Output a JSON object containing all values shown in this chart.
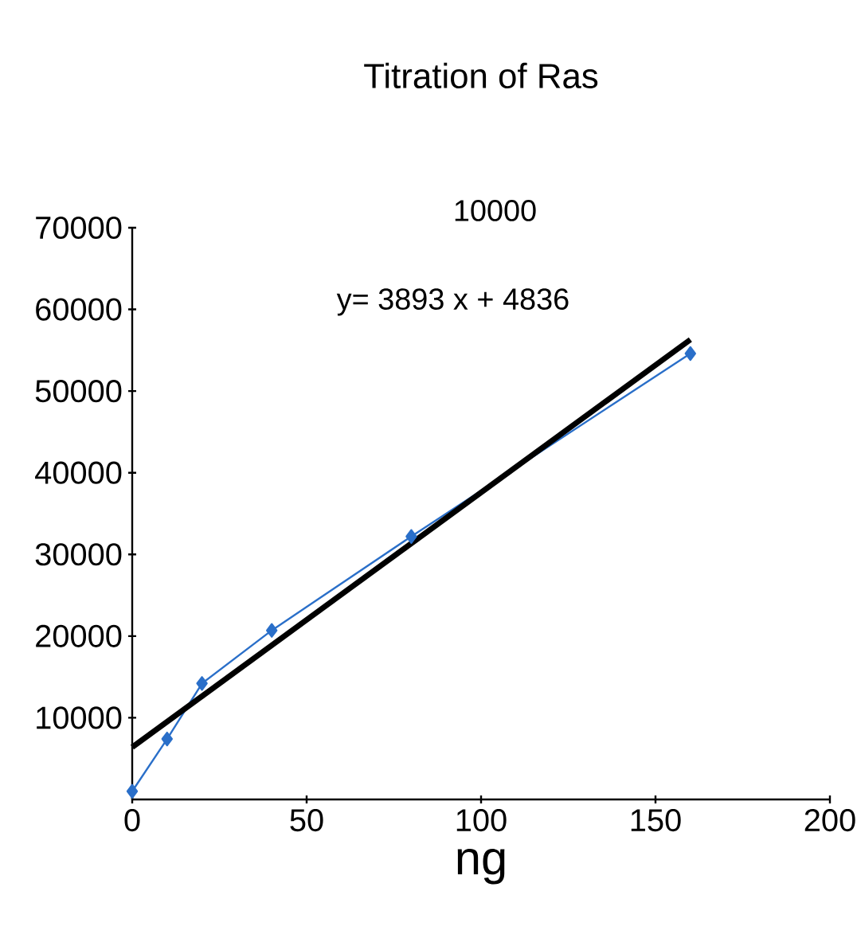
{
  "chart_data": {
    "type": "line",
    "title": "Titration of Ras",
    "xlabel": "ng",
    "xlim": [
      0,
      200
    ],
    "xticks": [
      0,
      50,
      100,
      150,
      200
    ],
    "ylim": [
      0,
      70000
    ],
    "yticks": [
      10000,
      20000,
      30000,
      40000,
      50000,
      60000,
      70000
    ],
    "marker": "diamond",
    "line_style": "solid",
    "annotations": [
      "10000",
      "y= 3893 x + 4836"
    ],
    "series": [
      {
        "color": "#2a6fc9",
        "x": [
          0,
          10,
          20,
          40,
          80,
          160
        ],
        "values": [
          1000,
          7400,
          14200,
          20700,
          32200,
          54600
        ]
      },
      {
        "type": "line",
        "marker": "none",
        "color": "#000000",
        "x": [
          0,
          160
        ],
        "values": [
          6400,
          56300
        ]
      }
    ]
  }
}
